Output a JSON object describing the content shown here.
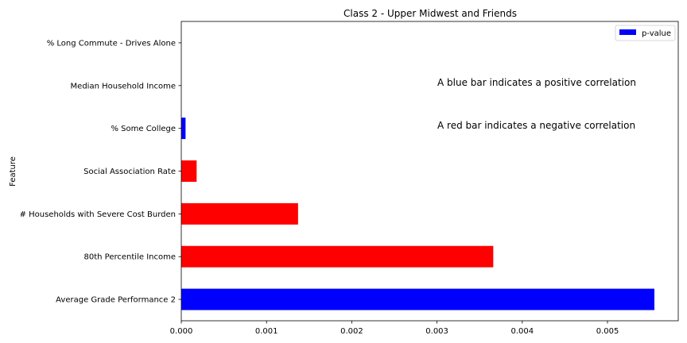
{
  "chart_data": {
    "type": "bar",
    "orientation": "horizontal",
    "title": "Class 2 - Upper Midwest and Friends",
    "xlabel": "",
    "ylabel": "Feature",
    "xlim": [
      0,
      0.00583
    ],
    "xticks": [
      "0.000",
      "0.001",
      "0.002",
      "0.003",
      "0.004",
      "0.005"
    ],
    "categories": [
      "Average Grade Performance 2",
      "80th Percentile Income",
      "# Households with Severe Cost Burden",
      "Social Association Rate",
      "% Some College",
      "Median Household Income",
      "% Long Commute - Drives Alone"
    ],
    "series": [
      {
        "name": "p-value",
        "values": [
          0.00555,
          0.00366,
          0.00137,
          0.00018,
          5e-05,
          0.0,
          0.0
        ],
        "colors": [
          "#0000ff",
          "#ff0000",
          "#ff0000",
          "#ff0000",
          "#0000ff",
          "#0000ff",
          "#0000ff"
        ]
      }
    ],
    "legend": {
      "label": "p-value",
      "color": "#0000ff",
      "placement": "top-right"
    },
    "annotations": [
      "A blue bar indicates a positive correlation",
      "A red bar indicates a negative correlation"
    ],
    "grid": false
  }
}
